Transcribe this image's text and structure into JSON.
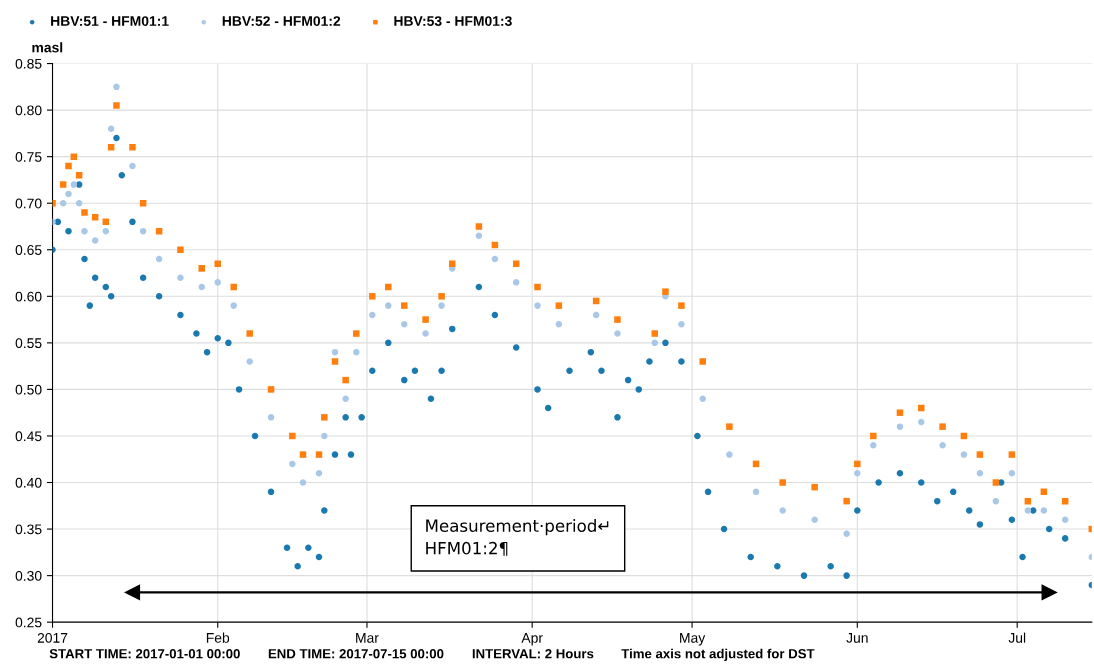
{
  "chart_data": {
    "type": "scatter",
    "ylabel": "masl",
    "legend": "top left",
    "grid": true,
    "xlim": [
      "2017-01-01",
      "2017-07-15"
    ],
    "xticks": [
      {
        "value": "2017-01-01",
        "label": "2017"
      },
      {
        "value": "2017-02-01",
        "label": "Feb"
      },
      {
        "value": "2017-03-01",
        "label": "Mar"
      },
      {
        "value": "2017-04-01",
        "label": "Apr"
      },
      {
        "value": "2017-05-01",
        "label": "May"
      },
      {
        "value": "2017-06-01",
        "label": "Jun"
      },
      {
        "value": "2017-07-01",
        "label": "Jul"
      }
    ],
    "ylim": [
      0.25,
      0.85
    ],
    "yticks": [
      0.25,
      {
        "value": 0.3,
        "label": "0.30"
      },
      0.35,
      {
        "value": 0.4,
        "label": "0.40"
      },
      0.45,
      {
        "value": 0.5,
        "label": "0.50"
      },
      0.55,
      {
        "value": 0.6,
        "label": "0.60"
      },
      0.65,
      {
        "value": 0.7,
        "label": "0.70"
      },
      0.75,
      {
        "value": 0.8,
        "label": "0.80"
      },
      0.85
    ],
    "annotations": [
      "Measurement·period↵\nHFM01:2¶",
      "START TIME: 2017-01-01 00:00",
      "END TIME: 2017-07-15 00:00",
      "INTERVAL: 2 Hours",
      "Time axis not adjusted for DST"
    ],
    "series": [
      {
        "type": "line",
        "color": "#000000",
        "marker": "triangle",
        "x": [
          "2017-01-16",
          "2017-07-07"
        ],
        "values": [
          0.282,
          0.282
        ]
      },
      {
        "name": "HBV:51 - HFM01:1",
        "color": "#1a7ab0",
        "marker": "circle",
        "x": [
          "2017-01-01",
          "2017-01-02",
          "2017-01-04",
          "2017-01-06",
          "2017-01-07",
          "2017-01-08",
          "2017-01-09",
          "2017-01-11",
          "2017-01-12",
          "2017-01-13",
          "2017-01-14",
          "2017-01-16",
          "2017-01-18",
          "2017-01-21",
          "2017-01-25",
          "2017-01-28",
          "2017-01-30",
          "2017-02-01",
          "2017-02-03",
          "2017-02-05",
          "2017-02-08",
          "2017-02-11",
          "2017-02-14",
          "2017-02-16",
          "2017-02-18",
          "2017-02-20",
          "2017-02-21",
          "2017-02-23",
          "2017-02-25",
          "2017-02-26",
          "2017-02-28",
          "2017-03-02",
          "2017-03-05",
          "2017-03-08",
          "2017-03-10",
          "2017-03-13",
          "2017-03-15",
          "2017-03-17",
          "2017-03-22",
          "2017-03-25",
          "2017-03-29",
          "2017-04-02",
          "2017-04-04",
          "2017-04-08",
          "2017-04-12",
          "2017-04-14",
          "2017-04-17",
          "2017-04-19",
          "2017-04-21",
          "2017-04-23",
          "2017-04-26",
          "2017-04-29",
          "2017-05-02",
          "2017-05-04",
          "2017-05-07",
          "2017-05-12",
          "2017-05-17",
          "2017-05-22",
          "2017-05-27",
          "2017-05-30",
          "2017-06-01",
          "2017-06-05",
          "2017-06-09",
          "2017-06-13",
          "2017-06-16",
          "2017-06-19",
          "2017-06-22",
          "2017-06-24",
          "2017-06-28",
          "2017-06-30",
          "2017-07-02",
          "2017-07-04",
          "2017-07-07",
          "2017-07-10",
          "2017-07-15"
        ],
        "values": [
          0.65,
          0.68,
          0.67,
          0.72,
          0.64,
          0.59,
          0.62,
          0.61,
          0.6,
          0.77,
          0.73,
          0.68,
          0.62,
          0.6,
          0.58,
          0.56,
          0.54,
          0.555,
          0.55,
          0.5,
          0.45,
          0.39,
          0.33,
          0.31,
          0.33,
          0.32,
          0.37,
          0.43,
          0.47,
          0.43,
          0.47,
          0.52,
          0.55,
          0.51,
          0.52,
          0.49,
          0.52,
          0.565,
          0.61,
          0.58,
          0.545,
          0.5,
          0.48,
          0.52,
          0.54,
          0.52,
          0.47,
          0.51,
          0.5,
          0.53,
          0.55,
          0.53,
          0.45,
          0.39,
          0.35,
          0.32,
          0.31,
          0.3,
          0.31,
          0.3,
          0.37,
          0.4,
          0.41,
          0.4,
          0.38,
          0.39,
          0.37,
          0.355,
          0.4,
          0.36,
          0.32,
          0.37,
          0.35,
          0.34,
          0.29
        ]
      },
      {
        "name": "HBV:52 - HFM01:2",
        "color": "#a9c8e8",
        "marker": "circle",
        "x": [
          "2017-01-01",
          "2017-01-03",
          "2017-01-04",
          "2017-01-05",
          "2017-01-06",
          "2017-01-07",
          "2017-01-09",
          "2017-01-11",
          "2017-01-12",
          "2017-01-13",
          "2017-01-16",
          "2017-01-18",
          "2017-01-21",
          "2017-01-25",
          "2017-01-29",
          "2017-02-01",
          "2017-02-04",
          "2017-02-07",
          "2017-02-11",
          "2017-02-15",
          "2017-02-17",
          "2017-02-20",
          "2017-02-21",
          "2017-02-23",
          "2017-02-25",
          "2017-02-27",
          "2017-03-02",
          "2017-03-05",
          "2017-03-08",
          "2017-03-12",
          "2017-03-15",
          "2017-03-17",
          "2017-03-22",
          "2017-03-25",
          "2017-03-29",
          "2017-04-02",
          "2017-04-06",
          "2017-04-13",
          "2017-04-17",
          "2017-04-24",
          "2017-04-26",
          "2017-04-29",
          "2017-05-03",
          "2017-05-08",
          "2017-05-13",
          "2017-05-18",
          "2017-05-24",
          "2017-05-30",
          "2017-06-01",
          "2017-06-04",
          "2017-06-09",
          "2017-06-13",
          "2017-06-17",
          "2017-06-21",
          "2017-06-24",
          "2017-06-27",
          "2017-06-30",
          "2017-07-03",
          "2017-07-06",
          "2017-07-10",
          "2017-07-15"
        ],
        "values": [
          0.68,
          0.7,
          0.71,
          0.72,
          0.7,
          0.67,
          0.66,
          0.67,
          0.78,
          0.825,
          0.74,
          0.67,
          0.64,
          0.62,
          0.61,
          0.615,
          0.59,
          0.53,
          0.47,
          0.42,
          0.4,
          0.41,
          0.45,
          0.54,
          0.49,
          0.54,
          0.58,
          0.59,
          0.57,
          0.56,
          0.59,
          0.63,
          0.665,
          0.64,
          0.615,
          0.59,
          0.57,
          0.58,
          0.56,
          0.55,
          0.6,
          0.57,
          0.49,
          0.43,
          0.39,
          0.37,
          0.36,
          0.345,
          0.41,
          0.44,
          0.46,
          0.465,
          0.44,
          0.43,
          0.41,
          0.38,
          0.41,
          0.37,
          0.37,
          0.36,
          0.32
        ]
      },
      {
        "name": "HBV:53 - HFM01:3",
        "color": "#ff7f0e",
        "marker": "square",
        "x": [
          "2017-01-01",
          "2017-01-03",
          "2017-01-04",
          "2017-01-05",
          "2017-01-06",
          "2017-01-07",
          "2017-01-09",
          "2017-01-11",
          "2017-01-12",
          "2017-01-13",
          "2017-01-16",
          "2017-01-18",
          "2017-01-21",
          "2017-01-25",
          "2017-01-29",
          "2017-02-01",
          "2017-02-04",
          "2017-02-07",
          "2017-02-11",
          "2017-02-15",
          "2017-02-17",
          "2017-02-20",
          "2017-02-21",
          "2017-02-23",
          "2017-02-25",
          "2017-02-27",
          "2017-03-02",
          "2017-03-05",
          "2017-03-08",
          "2017-03-12",
          "2017-03-15",
          "2017-03-17",
          "2017-03-22",
          "2017-03-25",
          "2017-03-29",
          "2017-04-02",
          "2017-04-06",
          "2017-04-13",
          "2017-04-17",
          "2017-04-24",
          "2017-04-26",
          "2017-04-29",
          "2017-05-03",
          "2017-05-08",
          "2017-05-13",
          "2017-05-18",
          "2017-05-24",
          "2017-05-30",
          "2017-06-01",
          "2017-06-04",
          "2017-06-09",
          "2017-06-13",
          "2017-06-17",
          "2017-06-21",
          "2017-06-24",
          "2017-06-27",
          "2017-06-30",
          "2017-07-03",
          "2017-07-06",
          "2017-07-10",
          "2017-07-15"
        ],
        "values": [
          0.7,
          0.72,
          0.74,
          0.75,
          0.73,
          0.69,
          0.685,
          0.68,
          0.76,
          0.805,
          0.76,
          0.7,
          0.67,
          0.65,
          0.63,
          0.635,
          0.61,
          0.56,
          0.5,
          0.45,
          0.43,
          0.43,
          0.47,
          0.53,
          0.51,
          0.56,
          0.6,
          0.61,
          0.59,
          0.575,
          0.6,
          0.635,
          0.675,
          0.655,
          0.635,
          0.61,
          0.59,
          0.595,
          0.575,
          0.56,
          0.605,
          0.59,
          0.53,
          0.46,
          0.42,
          0.4,
          0.395,
          0.38,
          0.42,
          0.45,
          0.475,
          0.48,
          0.46,
          0.45,
          0.43,
          0.4,
          0.43,
          0.38,
          0.39,
          0.38,
          0.35
        ]
      }
    ]
  }
}
